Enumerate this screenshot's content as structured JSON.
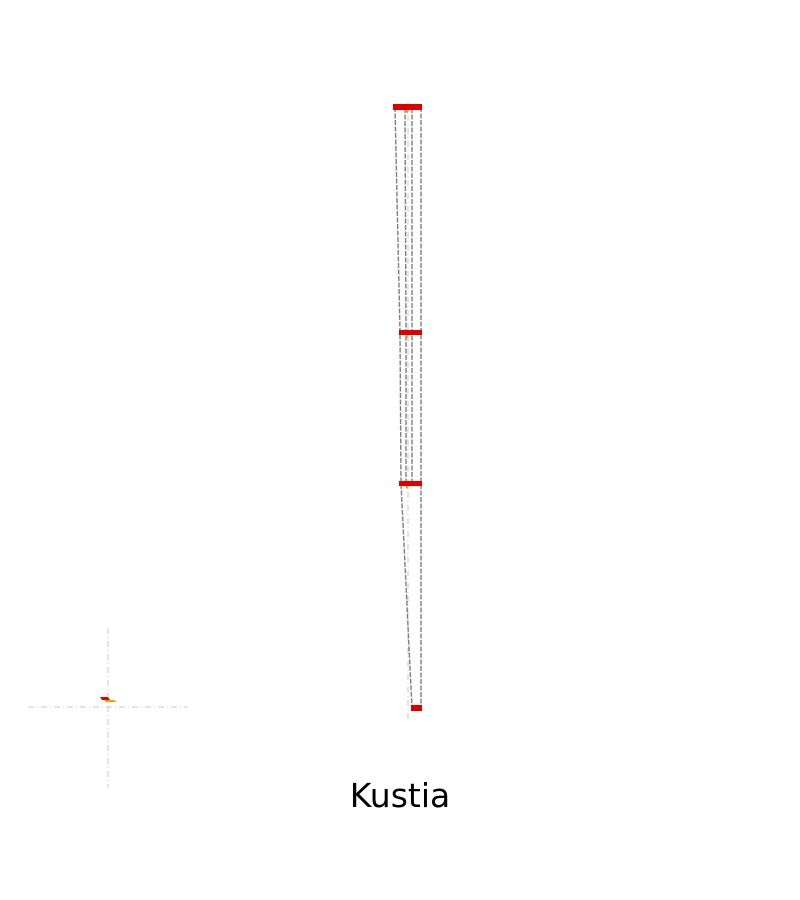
{
  "caption": "Kustia",
  "colors": {
    "outline": "#7f7f7f",
    "axis": "#c8c8c8",
    "marker": "#e00000",
    "accent": "#f0a000"
  }
}
